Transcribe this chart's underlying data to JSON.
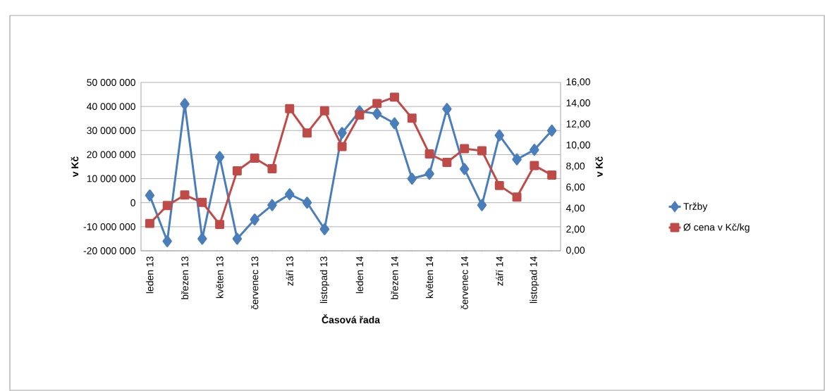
{
  "chart_data": {
    "type": "line",
    "xlabel": "Časová řada",
    "ylabel": "v Kč",
    "y2label": "v Kč",
    "categories": [
      "leden 13",
      null,
      "březen 13",
      null,
      "květen 13",
      null,
      "červenec 13",
      null,
      "září 13",
      null,
      "listopad 13",
      null,
      "leden 14",
      null,
      "březen 14",
      null,
      "květen 14",
      null,
      "červenec 14",
      null,
      "září 14",
      null,
      "listopad 14",
      null
    ],
    "series": [
      {
        "name": "Tržby",
        "color": "#4a7ebb",
        "marker": "diamond",
        "values": [
          3000000,
          -16000000,
          41000000,
          -15000000,
          19000000,
          -15000000,
          -7000000,
          -1000000,
          3500000,
          0,
          -11000000,
          29000000,
          38000000,
          37000000,
          33000000,
          10000000,
          12000000,
          39000000,
          14000000,
          -1000000,
          28000000,
          18000000,
          22000000,
          30000000
        ]
      },
      {
        "name": "Ø cena v Kč/kg",
        "color": "#be4b48",
        "marker": "square",
        "axis": "y2",
        "values": [
          2.6,
          4.3,
          5.3,
          4.6,
          2.5,
          7.6,
          8.8,
          7.8,
          13.5,
          11.2,
          13.3,
          9.9,
          12.9,
          14.0,
          14.6,
          12.6,
          9.2,
          8.4,
          9.7,
          9.5,
          6.2,
          5.1,
          8.1,
          7.2
        ]
      }
    ],
    "ylim": [
      -20000000,
      50000000
    ],
    "yticks": [
      {
        "value": -20000000,
        "label": "-20 000 000"
      },
      {
        "value": -10000000,
        "label": "-10 000 000"
      },
      0,
      {
        "value": 10000000,
        "label": "10 000 000"
      },
      {
        "value": 20000000,
        "label": "20 000 000"
      },
      {
        "value": 30000000,
        "label": "30 000 000"
      },
      {
        "value": 40000000,
        "label": "40 000 000"
      },
      {
        "value": 50000000,
        "label": "50 000 000"
      }
    ],
    "y2lim": [
      0,
      16
    ],
    "y2ticks": [
      {
        "value": 0,
        "label": "0,00"
      },
      {
        "value": 2,
        "label": "2,00"
      },
      {
        "value": 4,
        "label": "4,00"
      },
      {
        "value": 6,
        "label": "6,00"
      },
      {
        "value": 8,
        "label": "8,00"
      },
      {
        "value": 10,
        "label": "10,00"
      },
      {
        "value": 12,
        "label": "12,00"
      },
      {
        "value": 14,
        "label": "14,00"
      },
      {
        "value": 16,
        "label": "16,00"
      }
    ],
    "grid": "y",
    "legend": "right",
    "line_style": "solid"
  }
}
